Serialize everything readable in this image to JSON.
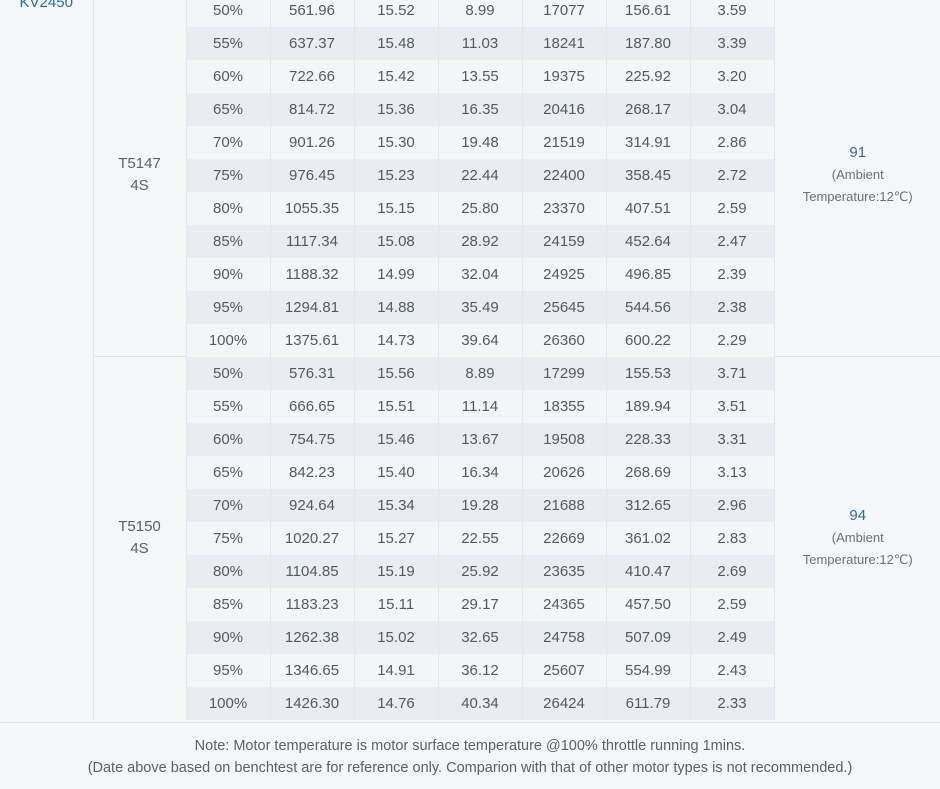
{
  "motor": "KV2450",
  "groups": [
    {
      "prop": "T5147",
      "voltage": "4S",
      "temp_value": "91",
      "temp_note_1": "(Ambient",
      "temp_note_2": "Temperature:12℃)",
      "rows": [
        [
          "50%",
          "561.96",
          "15.52",
          "8.99",
          "17077",
          "156.61",
          "3.59"
        ],
        [
          "55%",
          "637.37",
          "15.48",
          "11.03",
          "18241",
          "187.80",
          "3.39"
        ],
        [
          "60%",
          "722.66",
          "15.42",
          "13.55",
          "19375",
          "225.92",
          "3.20"
        ],
        [
          "65%",
          "814.72",
          "15.36",
          "16.35",
          "20416",
          "268.17",
          "3.04"
        ],
        [
          "70%",
          "901.26",
          "15.30",
          "19.48",
          "21519",
          "314.91",
          "2.86"
        ],
        [
          "75%",
          "976.45",
          "15.23",
          "22.44",
          "22400",
          "358.45",
          "2.72"
        ],
        [
          "80%",
          "1055.35",
          "15.15",
          "25.80",
          "23370",
          "407.51",
          "2.59"
        ],
        [
          "85%",
          "1117.34",
          "15.08",
          "28.92",
          "24159",
          "452.64",
          "2.47"
        ],
        [
          "90%",
          "1188.32",
          "14.99",
          "32.04",
          "24925",
          "496.85",
          "2.39"
        ],
        [
          "95%",
          "1294.81",
          "14.88",
          "35.49",
          "25645",
          "544.56",
          "2.38"
        ],
        [
          "100%",
          "1375.61",
          "14.73",
          "39.64",
          "26360",
          "600.22",
          "2.29"
        ]
      ]
    },
    {
      "prop": "T5150",
      "voltage": "4S",
      "temp_value": "94",
      "temp_note_1": "(Ambient",
      "temp_note_2": "Temperature:12℃)",
      "rows": [
        [
          "50%",
          "576.31",
          "15.56",
          "8.89",
          "17299",
          "155.53",
          "3.71"
        ],
        [
          "55%",
          "666.65",
          "15.51",
          "11.14",
          "18355",
          "189.94",
          "3.51"
        ],
        [
          "60%",
          "754.75",
          "15.46",
          "13.67",
          "19508",
          "228.33",
          "3.31"
        ],
        [
          "65%",
          "842.23",
          "15.40",
          "16.34",
          "20626",
          "268.69",
          "3.13"
        ],
        [
          "70%",
          "924.64",
          "15.34",
          "19.28",
          "21688",
          "312.65",
          "2.96"
        ],
        [
          "75%",
          "1020.27",
          "15.27",
          "22.55",
          "22669",
          "361.02",
          "2.83"
        ],
        [
          "80%",
          "1104.85",
          "15.19",
          "25.92",
          "23635",
          "410.47",
          "2.69"
        ],
        [
          "85%",
          "1183.23",
          "15.11",
          "29.17",
          "24365",
          "457.50",
          "2.59"
        ],
        [
          "90%",
          "1262.38",
          "15.02",
          "32.65",
          "24758",
          "507.09",
          "2.49"
        ],
        [
          "95%",
          "1346.65",
          "14.91",
          "36.12",
          "25607",
          "554.99",
          "2.43"
        ],
        [
          "100%",
          "1426.30",
          "14.76",
          "40.34",
          "26424",
          "611.79",
          "2.33"
        ]
      ]
    }
  ],
  "note": {
    "line1": "Note: Motor temperature is motor surface temperature @100% throttle running 1mins.",
    "line2": "(Date above based on benchtest are for reference only. Comparion with that of other motor types is not recommended.)"
  }
}
